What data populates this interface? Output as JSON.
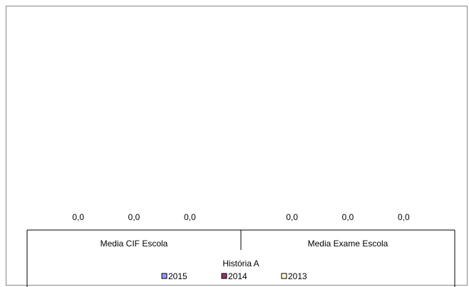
{
  "chart_data": {
    "type": "bar",
    "title": "",
    "xlabel": "História A",
    "ylabel": "",
    "categories": [
      "Media CIF Escola",
      "Media Exame Escola"
    ],
    "series": [
      {
        "name": "2015",
        "values": [
          0.0,
          0.0
        ],
        "labels": [
          "0,0",
          "0,0"
        ],
        "color": "#9999ff"
      },
      {
        "name": "2014",
        "values": [
          0.0,
          0.0
        ],
        "labels": [
          "0,0",
          "0,0"
        ],
        "color": "#993366"
      },
      {
        "name": "2013",
        "values": [
          0.0,
          0.0
        ],
        "labels": [
          "0,0",
          "0,0"
        ],
        "color": "#ffffcc"
      }
    ],
    "grid": false,
    "legend_position": "bottom"
  }
}
